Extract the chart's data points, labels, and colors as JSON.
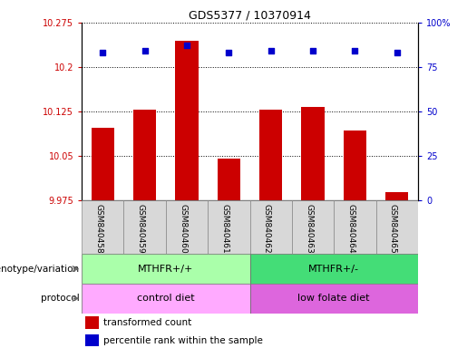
{
  "title": "GDS5377 / 10370914",
  "samples": [
    "GSM840458",
    "GSM840459",
    "GSM840460",
    "GSM840461",
    "GSM840462",
    "GSM840463",
    "GSM840464",
    "GSM840465"
  ],
  "bar_values": [
    10.097,
    10.128,
    10.245,
    10.045,
    10.128,
    10.132,
    10.093,
    9.988
  ],
  "blue_values": [
    83,
    84,
    87,
    83,
    84,
    84,
    84,
    83
  ],
  "ylim_left": [
    9.975,
    10.275
  ],
  "ylim_right": [
    0,
    100
  ],
  "yticks_left": [
    9.975,
    10.05,
    10.125,
    10.2,
    10.275
  ],
  "yticks_right": [
    0,
    25,
    50,
    75,
    100
  ],
  "ytick_labels_left": [
    "9.975",
    "10.05",
    "10.125",
    "10.2",
    "10.275"
  ],
  "ytick_labels_right": [
    "0",
    "25",
    "50",
    "75",
    "100%"
  ],
  "bar_color": "#cc0000",
  "blue_color": "#0000cc",
  "genotype_labels": [
    "MTHFR+/+",
    "MTHFR+/-"
  ],
  "genotype_colors": [
    "#aaffaa",
    "#44dd77"
  ],
  "protocol_labels": [
    "control diet",
    "low folate diet"
  ],
  "protocol_colors": [
    "#ffaaff",
    "#dd66dd"
  ],
  "legend_red": "transformed count",
  "legend_blue": "percentile rank within the sample",
  "left_label_genotype": "genotype/variation",
  "left_label_protocol": "protocol",
  "tick_color_left": "#cc0000",
  "tick_color_right": "#0000cc",
  "bar_bottom": 9.975,
  "title_fontsize": 9,
  "bar_width": 0.55
}
